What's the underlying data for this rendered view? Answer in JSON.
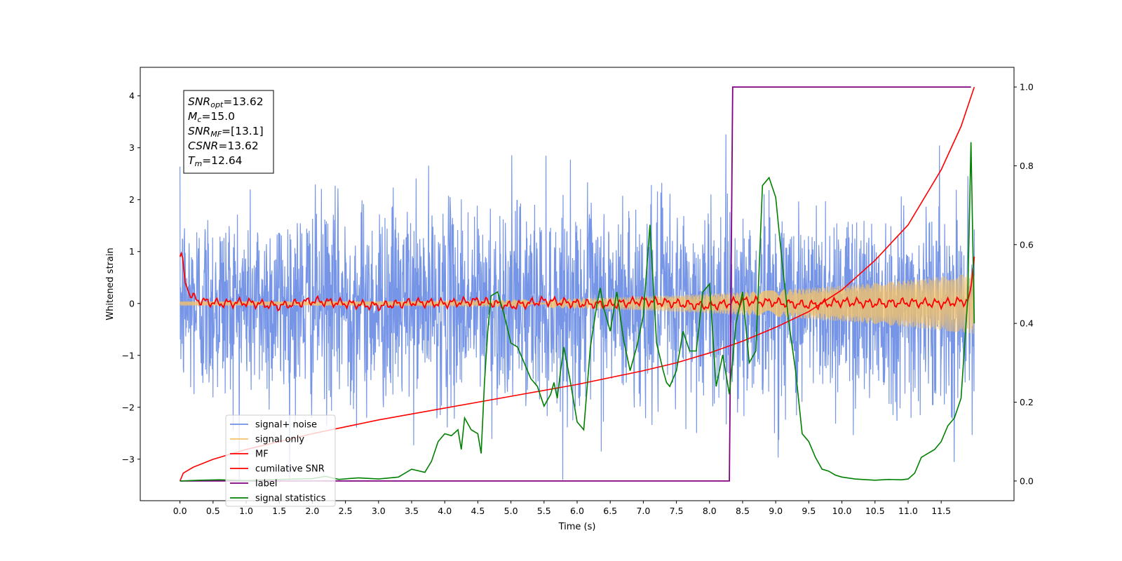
{
  "chart_data": {
    "type": "line",
    "xlabel": "Time (s)",
    "ylabel": "Whitened strain",
    "xlim": [
      -0.6,
      12.6
    ],
    "ylim": [
      -3.8,
      4.55
    ],
    "y2lim": [
      -0.05,
      1.05
    ],
    "x_ticks": [
      "0.0",
      "0.5",
      "1.0",
      "1.5",
      "2.0",
      "2.5",
      "3.0",
      "3.5",
      "4.0",
      "4.5",
      "5.0",
      "5.5",
      "6.0",
      "6.5",
      "7.0",
      "7.5",
      "8.0",
      "8.5",
      "9.0",
      "9.5",
      "10.0",
      "10.5",
      "11.0",
      "11.5"
    ],
    "y_ticks": [
      "−3",
      "−2",
      "−1",
      "0",
      "1",
      "2",
      "3",
      "4"
    ],
    "y2_ticks": [
      "0.0",
      "0.2",
      "0.4",
      "0.6",
      "0.8",
      "1.0"
    ],
    "legend_location": "lower-left",
    "grid": false,
    "series": [
      {
        "name": "signal+ noise",
        "color": "#6f8fe6",
        "axis": "left",
        "duration": 12.0,
        "amplitude": 1.0
      },
      {
        "name": "signal only",
        "color": "#f4c26a",
        "axis": "left",
        "duration": 12.0
      },
      {
        "name": "MF",
        "color": "#ff0000",
        "axis": "left",
        "x": [
          0.0,
          0.03,
          0.08,
          0.15,
          0.3,
          0.6,
          1.0,
          1.5,
          2.0,
          2.5,
          3.0,
          3.5,
          4.0,
          4.5,
          5.0,
          5.5,
          6.0,
          6.5,
          7.0,
          7.5,
          8.0,
          8.5,
          9.0,
          9.5,
          10.0,
          10.5,
          11.0,
          11.5,
          11.9,
          11.95,
          12.0
        ],
        "y": [
          0.9,
          1.0,
          0.4,
          0.15,
          0.05,
          0.0,
          0.02,
          -0.05,
          0.05,
          0.0,
          -0.05,
          0.02,
          0.0,
          0.05,
          -0.05,
          0.05,
          0.0,
          -0.02,
          0.05,
          0.0,
          -0.05,
          0.05,
          0.02,
          -0.03,
          0.03,
          0.0,
          0.02,
          0.0,
          0.05,
          0.3,
          0.9
        ]
      },
      {
        "name": "cumilative SNR",
        "color": "#ff0000",
        "axis": "right",
        "x": [
          0.0,
          0.05,
          0.2,
          0.5,
          1.0,
          2.0,
          3.0,
          4.0,
          5.0,
          6.0,
          7.0,
          7.5,
          8.0,
          8.5,
          9.0,
          9.5,
          10.0,
          10.5,
          11.0,
          11.5,
          11.8,
          12.0
        ],
        "y": [
          0.0,
          0.02,
          0.035,
          0.055,
          0.08,
          0.12,
          0.155,
          0.185,
          0.215,
          0.245,
          0.28,
          0.3,
          0.325,
          0.355,
          0.39,
          0.43,
          0.485,
          0.56,
          0.65,
          0.79,
          0.9,
          1.0
        ]
      },
      {
        "name": "label",
        "color": "#800080",
        "axis": "right",
        "x": [
          0.0,
          8.3,
          8.35,
          11.95
        ],
        "y": [
          0.0,
          0.0,
          1.0,
          1.0
        ]
      },
      {
        "name": "signal statistics",
        "color": "#008000",
        "axis": "right",
        "x": [
          0.0,
          0.3,
          0.6,
          1.0,
          1.5,
          2.0,
          2.2,
          2.4,
          2.7,
          3.0,
          3.3,
          3.5,
          3.7,
          3.8,
          3.9,
          4.0,
          4.1,
          4.2,
          4.25,
          4.3,
          4.4,
          4.5,
          4.55,
          4.6,
          4.65,
          4.7,
          4.8,
          4.9,
          5.0,
          5.1,
          5.2,
          5.3,
          5.4,
          5.5,
          5.6,
          5.65,
          5.7,
          5.75,
          5.8,
          5.9,
          6.0,
          6.1,
          6.2,
          6.3,
          6.35,
          6.4,
          6.5,
          6.6,
          6.7,
          6.8,
          6.9,
          7.0,
          7.1,
          7.2,
          7.3,
          7.35,
          7.4,
          7.5,
          7.6,
          7.7,
          7.8,
          7.9,
          8.0,
          8.1,
          8.2,
          8.3,
          8.4,
          8.5,
          8.6,
          8.7,
          8.8,
          8.9,
          9.0,
          9.1,
          9.2,
          9.3,
          9.4,
          9.5,
          9.6,
          9.7,
          9.8,
          9.9,
          10.0,
          10.2,
          10.5,
          10.7,
          10.9,
          11.0,
          11.1,
          11.2,
          11.3,
          11.4,
          11.5,
          11.6,
          11.7,
          11.8,
          11.9,
          11.95,
          12.0
        ],
        "y": [
          0.0,
          0.002,
          0.003,
          0.001,
          0.004,
          0.006,
          0.012,
          0.004,
          0.008,
          0.005,
          0.01,
          0.03,
          0.022,
          0.05,
          0.1,
          0.12,
          0.115,
          0.13,
          0.08,
          0.16,
          0.13,
          0.12,
          0.07,
          0.25,
          0.38,
          0.47,
          0.48,
          0.42,
          0.35,
          0.34,
          0.3,
          0.26,
          0.24,
          0.19,
          0.22,
          0.25,
          0.21,
          0.28,
          0.34,
          0.25,
          0.15,
          0.13,
          0.34,
          0.45,
          0.49,
          0.44,
          0.38,
          0.48,
          0.36,
          0.28,
          0.34,
          0.42,
          0.65,
          0.35,
          0.28,
          0.25,
          0.24,
          0.28,
          0.38,
          0.33,
          0.33,
          0.48,
          0.5,
          0.24,
          0.32,
          0.22,
          0.4,
          0.48,
          0.3,
          0.33,
          0.75,
          0.77,
          0.72,
          0.55,
          0.4,
          0.28,
          0.12,
          0.1,
          0.06,
          0.03,
          0.025,
          0.015,
          0.01,
          0.005,
          0.002,
          0.004,
          0.003,
          0.005,
          0.02,
          0.06,
          0.07,
          0.08,
          0.1,
          0.14,
          0.16,
          0.21,
          0.46,
          0.86,
          0.4
        ]
      }
    ],
    "annotation": {
      "lines": [
        {
          "sym": "SNR",
          "sub": "opt",
          "value": "=13.62"
        },
        {
          "sym": "M",
          "sub": "c",
          "value": "=15.0"
        },
        {
          "sym": "SNR",
          "sub": "MF",
          "value": "=[13.1]"
        },
        {
          "sym": "CSNR",
          "sub": "",
          "value": "=13.62"
        },
        {
          "sym": "T",
          "sub": "m",
          "value": "=12.64"
        }
      ]
    }
  }
}
